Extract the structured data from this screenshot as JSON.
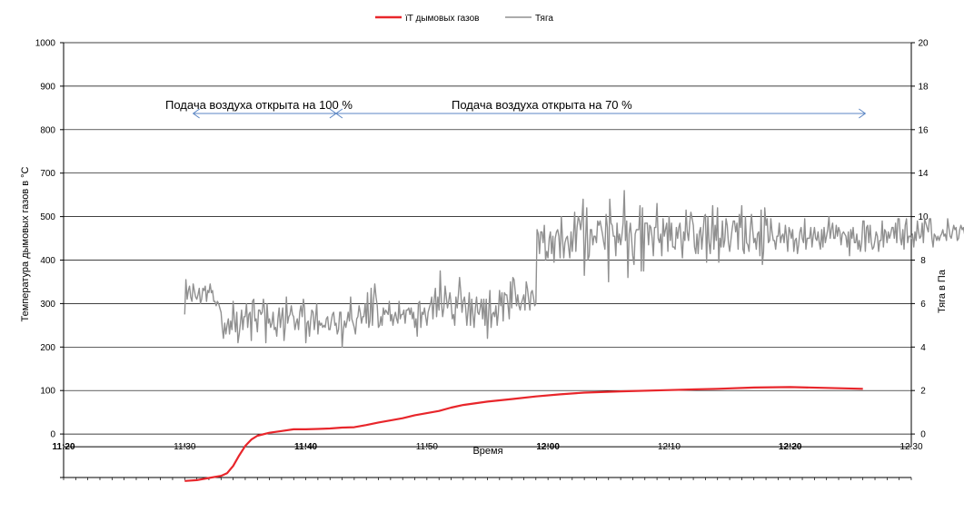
{
  "chart_data": {
    "type": "line",
    "xlabel": "Время",
    "ylabel_left": "Температура дымовых газов в °C",
    "ylabel_right": "Тяга в Па",
    "x_ticks": [
      {
        "label": "11:20",
        "t": 0,
        "bold": true
      },
      {
        "label": "11:30",
        "t": 10,
        "bold": false
      },
      {
        "label": "11:40",
        "t": 20,
        "bold": true
      },
      {
        "label": "11:50",
        "t": 30,
        "bold": false
      },
      {
        "label": "12:00",
        "t": 40,
        "bold": true
      },
      {
        "label": "12:10",
        "t": 50,
        "bold": false
      },
      {
        "label": "12:20",
        "t": 60,
        "bold": true
      },
      {
        "label": "12:30",
        "t": 70,
        "bold": false
      }
    ],
    "y_left_ticks": [
      "1000",
      "900",
      "800",
      "700",
      "500",
      "400",
      "300",
      "200",
      "100",
      "0"
    ],
    "y_right_ticks": [
      "20",
      "18",
      "16",
      "14",
      "10",
      "8",
      "6",
      "4",
      "2",
      "0"
    ],
    "legend": [
      {
        "name": "ïT дымовых газов",
        "color": "#e8262b"
      },
      {
        "name": "Тяга",
        "color": "#909090"
      }
    ],
    "annotations": [
      {
        "text": "Подача воздуха открыта на  100 %",
        "from": 10.7,
        "to": 22.5
      },
      {
        "text": "Подача воздуха открыта на  70 %",
        "from": 22.5,
        "to": 66.2
      }
    ],
    "series": [
      {
        "name": "ïT дымовых газов",
        "axis": "left",
        "color": "#e8262b",
        "points": [
          [
            10.0,
            -110
          ],
          [
            11.0,
            -108
          ],
          [
            12.0,
            -103
          ],
          [
            13.0,
            -98
          ],
          [
            13.5,
            -92
          ],
          [
            14.0,
            -75
          ],
          [
            14.5,
            -50
          ],
          [
            15.0,
            -28
          ],
          [
            15.5,
            -13
          ],
          [
            16.0,
            -4
          ],
          [
            17.0,
            3
          ],
          [
            18.0,
            7
          ],
          [
            19.0,
            11
          ],
          [
            20.0,
            11
          ],
          [
            21.0,
            12
          ],
          [
            22.0,
            13
          ],
          [
            23.0,
            15
          ],
          [
            24.0,
            16
          ],
          [
            25.0,
            21
          ],
          [
            26.0,
            27
          ],
          [
            27.0,
            32
          ],
          [
            28.0,
            37
          ],
          [
            29.0,
            44
          ],
          [
            30.0,
            49
          ],
          [
            31.0,
            54
          ],
          [
            32.0,
            62
          ],
          [
            33.0,
            68
          ],
          [
            35.0,
            76
          ],
          [
            37.0,
            82
          ],
          [
            39.0,
            88
          ],
          [
            41.0,
            93
          ],
          [
            43.0,
            97
          ],
          [
            46.0,
            100
          ],
          [
            50.0,
            103
          ],
          [
            54.0,
            106
          ],
          [
            57.0,
            109
          ],
          [
            60.0,
            110
          ],
          [
            63.0,
            108
          ],
          [
            66.0,
            106
          ]
        ]
      },
      {
        "name": "Тяга",
        "axis": "right",
        "color": "#909090",
        "x_start": 10.0,
        "x_step": 0.1,
        "values": [
          5.5,
          7.1,
          6.2,
          6.6,
          6.8,
          6.3,
          6.1,
          6.9,
          6.6,
          6.3,
          6.2,
          6.4,
          6.7,
          6.0,
          6.2,
          6.7,
          6.6,
          6.8,
          6.1,
          6.6,
          6.5,
          6.9,
          6.5,
          6.6,
          6.1,
          6.1,
          5.9,
          6.1,
          6.0,
          5.8,
          5.6,
          4.9,
          4.4,
          5.1,
          4.6,
          5.0,
          5.3,
          4.6,
          5.2,
          4.8,
          6.1,
          5.3,
          4.7,
          5.6,
          4.2,
          4.6,
          5.1,
          5.7,
          4.8,
          5.4,
          5.4,
          6.0,
          4.9,
          5.5,
          5.6,
          4.3,
          6.1,
          6.2,
          5.2,
          5.3,
          4.7,
          5.7,
          5.7,
          5.5,
          5.6,
          6.2,
          5.7,
          4.2,
          6.0,
          5.1,
          5.3,
          4.9,
          5.1,
          5.6,
          4.8,
          4.9,
          4.5,
          5.3,
          5.8,
          4.9,
          5.4,
          5.8,
          4.3,
          4.9,
          6.3,
          5.1,
          5.4,
          5.5,
          5.9,
          5.5,
          5.4,
          4.8,
          5.1,
          5.3,
          4.8,
          5.6,
          5.9,
          5.4,
          6.2,
          5.8,
          4.2,
          5.1,
          5.2,
          4.5,
          5.2,
          5.7,
          5.6,
          4.8,
          5.3,
          6.0,
          4.6,
          5.2,
          5.0,
          5.1,
          4.9,
          5.0,
          4.9,
          5.3,
          5.4,
          4.8,
          4.8,
          5.2,
          5.5,
          5.6,
          5.0,
          5.1,
          4.6,
          4.8,
          5.6,
          5.6,
          4.0,
          4.8,
          5.2,
          4.9,
          5.2,
          5.6,
          5.2,
          6.3,
          5.3,
          5.1,
          4.9,
          4.6,
          5.3,
          5.4,
          5.9,
          5.6,
          5.1,
          5.4,
          5.4,
          6.0,
          5.1,
          6.5,
          4.9,
          5.2,
          6.7,
          5.0,
          6.2,
          6.9,
          6.3,
          5.9,
          4.9,
          5.0,
          5.4,
          5.0,
          5.8,
          5.5,
          5.7,
          5.6,
          5.5,
          6.1,
          5.2,
          5.5,
          5.0,
          5.4,
          5.6,
          5.3,
          5.1,
          6.1,
          5.3,
          5.5,
          5.5,
          5.7,
          5.1,
          5.7,
          5.7,
          5.8,
          5.5,
          5.8,
          5.3,
          5.6,
          4.9,
          5.3,
          4.5,
          6.0,
          6.1,
          4.9,
          5.6,
          5.5,
          5.8,
          5.4,
          5.0,
          5.6,
          5.8,
          6.0,
          6.3,
          5.3,
          6.2,
          6.7,
          5.4,
          6.3,
          5.7,
          7.5,
          6.0,
          5.4,
          5.8,
          6.8,
          6.3,
          5.8,
          6.1,
          6.5,
          6.0,
          5.3,
          5.5,
          5.0,
          6.3,
          5.8,
          6.4,
          7.2,
          6.5,
          5.6,
          6.1,
          6.3,
          5.8,
          5.0,
          5.7,
          6.5,
          5.0,
          6.2,
          5.5,
          4.9,
          5.8,
          6.3,
          5.6,
          5.5,
          5.8,
          6.2,
          5.3,
          6.2,
          5.0,
          6.2,
          4.4,
          5.6,
          6.6,
          4.9,
          5.5,
          5.6,
          5.4,
          5.9,
          5.0,
          5.6,
          6.6,
          5.9,
          6.5,
          5.2,
          6.5,
          6.4,
          6.4,
          5.9,
          5.3,
          7.0,
          5.8,
          7.2,
          7.1,
          6.5,
          5.9,
          6.4,
          5.9,
          5.7,
          6.0,
          6.2,
          6.4,
          5.7,
          7.0,
          6.7,
          6.2,
          5.7,
          6.5,
          6.6,
          6.3,
          5.9,
          6.0,
          9.4,
          9.2,
          8.3,
          9.3,
          9.3,
          8.8,
          9.6,
          8.0,
          8.4,
          8.1,
          9.0,
          9.3,
          8.3,
          9.1,
          7.9,
          9.0,
          9.3,
          9.4,
          9.1,
          8.1,
          10.0,
          9.0,
          8.1,
          8.8,
          9.0,
          9.1,
          8.6,
          8.1,
          9.3,
          8.4,
          9.1,
          10.2,
          8.4,
          9.5,
          10.0,
          9.8,
          9.4,
          9.9,
          10.8,
          7.3,
          8.9,
          10.4,
          8.0,
          8.2,
          9.4,
          9.4,
          8.7,
          9.1,
          9.1,
          8.8,
          9.8,
          9.6,
          9.8,
          9.5,
          9.2,
          8.8,
          8.5,
          10.1,
          9.5,
          7.0,
          10.8,
          9.7,
          9.6,
          9.1,
          9.1,
          8.2,
          9.7,
          8.8,
          9.2,
          8.7,
          9.1,
          9.7,
          11.2,
          8.9,
          9.8,
          7.2,
          9.2,
          9.7,
          9.0,
          8.2,
          7.8,
          9.2,
          9.4,
          9.4,
          9.4,
          10.5,
          7.5,
          10.4,
          7.5,
          9.7,
          9.7,
          9.7,
          8.7,
          9.6,
          9.5,
          9.0,
          8.2,
          9.5,
          9.5,
          10.6,
          9.0,
          8.8,
          9.2,
          8.2,
          9.9,
          9.1,
          9.4,
          9.7,
          8.4,
          10.0,
          8.9,
          9.7,
          8.6,
          8.6,
          8.5,
          9.5,
          9.0,
          9.5,
          9.7,
          8.8,
          8.1,
          9.3,
          8.9,
          10.3,
          9.3,
          8.9,
          9.7,
          10.2,
          9.9,
          9.6,
          8.6,
          8.3,
          9.2,
          8.3,
          9.3,
          9.5,
          8.5,
          9.2,
          10.0,
          10.1,
          7.9,
          10.0,
          8.8,
          8.3,
          9.3,
          10.5,
          8.5,
          9.6,
          8.9,
          10.4,
          7.9,
          9.0,
          8.6,
          9.8,
          8.6,
          8.9,
          9.9,
          9.6,
          8.8,
          8.4,
          8.9,
          9.4,
          9.8,
          9.8,
          9.3,
          9.7,
          8.5,
          10.1,
          9.5,
          10.5,
          8.5,
          8.3,
          10.0,
          8.8,
          8.7,
          8.4,
          9.4,
          10.1,
          9.4,
          8.8,
          9.0,
          8.5,
          9.2,
          9.3,
          8.2,
          10.3,
          7.8,
          8.4,
          10.4,
          9.6,
          9.9,
          8.8,
          8.9,
          9.9,
          9.3,
          8.9,
          8.9,
          8.5,
          9.1,
          9.1,
          9.7,
          8.8,
          9.1,
          9.2,
          8.8,
          9.6,
          9.1,
          8.4,
          9.5,
          9.3,
          9.0,
          9.4,
          8.4,
          8.9,
          9.0,
          8.3,
          8.7,
          9.3,
          9.5,
          9.0,
          8.8,
          9.9,
          8.5,
          9.0,
          9.0,
          9.0,
          9.5,
          8.6,
          9.1,
          9.5,
          9.0,
          8.9,
          9.3,
          8.8,
          8.5,
          9.4,
          8.6,
          9.5,
          8.8,
          9.1,
          9.4,
          10.0,
          9.0,
          9.4,
          9.7,
          9.0,
          9.0,
          9.6,
          9.1,
          9.5,
          9.3,
          8.7,
          9.2,
          9.3,
          9.2,
          9.1,
          8.6,
          9.3,
          8.2,
          9.4,
          9.0,
          9.5,
          8.8,
          8.8,
          9.2,
          8.5,
          8.9,
          8.4,
          8.8,
          9.8,
          9.8,
          8.4,
          9.5,
          9.6,
          8.8,
          9.6,
          8.8,
          8.5,
          8.6,
          8.9,
          9.3,
          9.1,
          8.4,
          8.9,
          8.9,
          9.8,
          8.6,
          9.4,
          9.3,
          8.8,
          9.3,
          9.0,
          9.2,
          9.5,
          9.5,
          9.0,
          9.7,
          8.8,
          9.9,
          9.9,
          9.0,
          8.7,
          9.4,
          8.5,
          9.6,
          9.9,
          8.8,
          9.1,
          9.1,
          9.0,
          9.2,
          8.6,
          9.3,
          8.9,
          9.8,
          9.3,
          9.0,
          9.1,
          9.7,
          8.8,
          9.9,
          9.7,
          9.5,
          9.3,
          9.9,
          9.9,
          9.0,
          8.6,
          9.2,
          9.1,
          8.9,
          9.1,
          8.9,
          9.1,
          9.2,
          9.4,
          9.1,
          9.2,
          8.9,
          9.9,
          9.5,
          9.1,
          9.0,
          9.3,
          9.6,
          9.4,
          9.5,
          8.9,
          9.0,
          9.4,
          9.6,
          9.4,
          9.5,
          9.2,
          9.6,
          9.7,
          9.7,
          9.9,
          9.6,
          9.3,
          9.4,
          9.8,
          9.8,
          9.0,
          9.9,
          9.2,
          9.6,
          9.2,
          9.8,
          9.3,
          9.6,
          9.2,
          9.3,
          9.3,
          9.7,
          9.9,
          9.3,
          9.4,
          9.6,
          10.1,
          9.1,
          9.2,
          9.2,
          9.6,
          9.2,
          9.9,
          9.5,
          9.7,
          9.6
        ]
      }
    ]
  }
}
